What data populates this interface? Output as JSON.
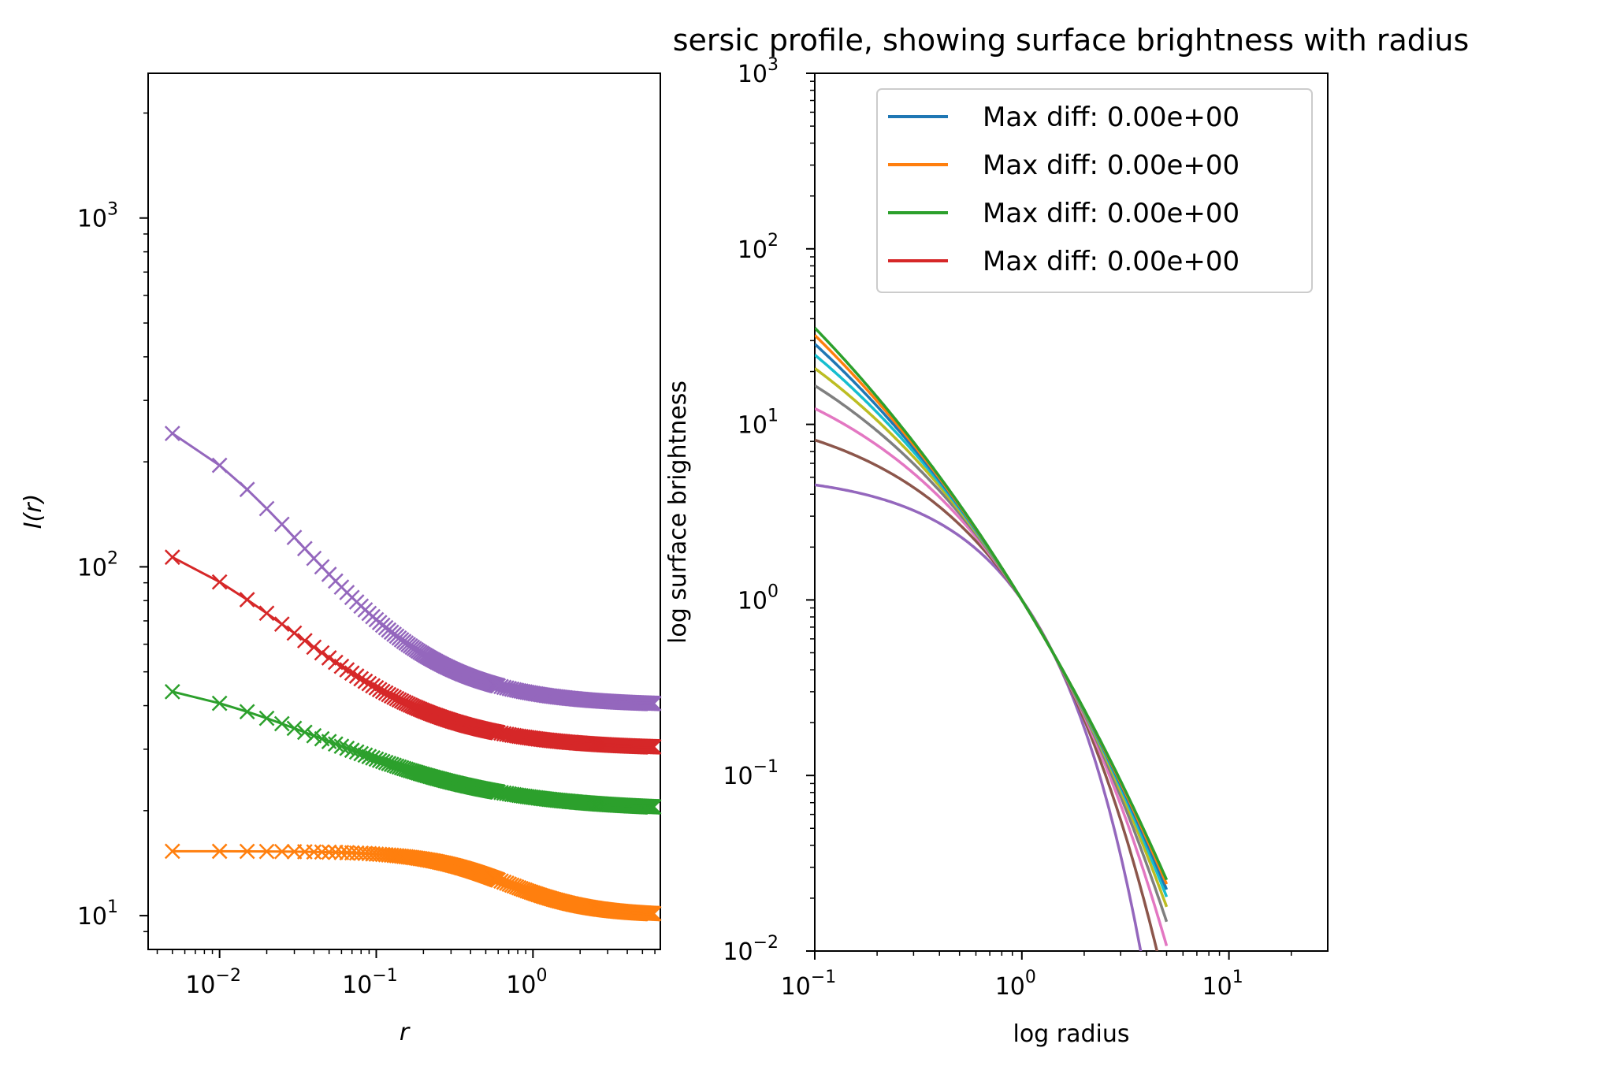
{
  "chart_data": [
    {
      "type": "line",
      "panel": "left",
      "title": "",
      "xlabel": "r",
      "ylabel": "I(r)",
      "xscale": "log",
      "yscale": "log",
      "xlim": [
        0.0035,
        6.5
      ],
      "ylim": [
        8.0,
        2600
      ],
      "xticks": [
        {
          "value": 0.01,
          "mantissa": "10",
          "exp": "−2"
        },
        {
          "value": 0.1,
          "mantissa": "10",
          "exp": "−1"
        },
        {
          "value": 1,
          "mantissa": "10",
          "exp": "0"
        }
      ],
      "yticks": [
        {
          "value": 10,
          "mantissa": "10",
          "exp": "1"
        },
        {
          "value": 100,
          "mantissa": "10",
          "exp": "2"
        },
        {
          "value": 1000,
          "mantissa": "10",
          "exp": "3"
        }
      ],
      "marker": "x",
      "series": [
        {
          "color": "#9467bd",
          "offset": 40,
          "amplitude": 285,
          "r0": 0.012,
          "alpha": 1.0
        },
        {
          "color": "#d62728",
          "offset": 30,
          "amplitude": 112,
          "r0": 0.012,
          "alpha": 0.88
        },
        {
          "color": "#2ca02c",
          "offset": 20,
          "amplitude": 31,
          "r0": 0.025,
          "alpha": 0.75
        },
        {
          "color": "#ff7f0e",
          "offset": 10,
          "amplitude": 5.3,
          "r0": 0.6,
          "alpha": 1.6
        }
      ]
    },
    {
      "type": "line",
      "panel": "right",
      "title": "sersic profile, showing surface brightness with radius",
      "xlabel": "log radius",
      "ylabel": "log surface brightness",
      "xscale": "log",
      "yscale": "log",
      "xlim": [
        0.1,
        30
      ],
      "ylim": [
        0.01,
        1000
      ],
      "xticks": [
        {
          "value": 0.1,
          "mantissa": "10",
          "exp": "−1"
        },
        {
          "value": 1,
          "mantissa": "10",
          "exp": "0"
        },
        {
          "value": 10,
          "mantissa": "10",
          "exp": "1"
        }
      ],
      "yticks": [
        {
          "value": 0.01,
          "mantissa": "10",
          "exp": "−2"
        },
        {
          "value": 0.1,
          "mantissa": "10",
          "exp": "−1"
        },
        {
          "value": 1,
          "mantissa": "10",
          "exp": "0"
        },
        {
          "value": 10,
          "mantissa": "10",
          "exp": "1"
        },
        {
          "value": 100,
          "mantissa": "10",
          "exp": "2"
        },
        {
          "value": 1000,
          "mantissa": "10",
          "exp": "3"
        }
      ],
      "legend_position": "upper right",
      "legend": [
        {
          "label": "Max diff: 0.00e+00",
          "color": "#1f77b4"
        },
        {
          "label": "Max diff: 0.00e+00",
          "color": "#ff7f0e"
        },
        {
          "label": "Max diff: 0.00e+00",
          "color": "#2ca02c"
        },
        {
          "label": "Max diff: 0.00e+00",
          "color": "#d62728"
        }
      ],
      "series": [
        {
          "color": "#9467bd",
          "n": 1.0,
          "x_end": 3.8
        },
        {
          "color": "#8c564b",
          "n": 1.5,
          "x_end": 5.0
        },
        {
          "color": "#e377c2",
          "n": 2.0,
          "x_end": 5.0
        },
        {
          "color": "#7f7f7f",
          "n": 2.5,
          "x_end": 5.0
        },
        {
          "color": "#bcbd22",
          "n": 3.0,
          "x_end": 5.0
        },
        {
          "color": "#17becf",
          "n": 3.5,
          "x_end": 5.0
        },
        {
          "color": "#1f77b4",
          "n": 4.0,
          "x_end": 5.0
        },
        {
          "color": "#ff7f0e",
          "n": 4.5,
          "x_end": 5.0
        },
        {
          "color": "#2ca02c",
          "n": 5.0,
          "x_end": 5.0
        }
      ]
    }
  ]
}
